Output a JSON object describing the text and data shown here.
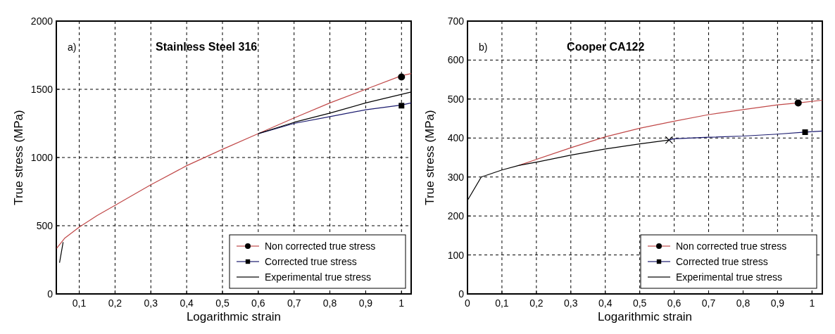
{
  "chart_data": [
    {
      "type": "line",
      "title": "Stainless Steel 316",
      "xlabel": "Logarithmic strain",
      "ylabel": "True stress (MPa)",
      "annotations": [
        "a)"
      ],
      "xlim": [
        0.036,
        1.027
      ],
      "ylim": [
        0,
        2000
      ],
      "xticks": [
        {
          "value": 0.1,
          "label": "0,1"
        },
        {
          "value": 0.2,
          "label": "0,2"
        },
        {
          "value": 0.3,
          "label": "0,3"
        },
        {
          "value": 0.4,
          "label": "0,4"
        },
        {
          "value": 0.5,
          "label": "0,5"
        },
        {
          "value": 0.6,
          "label": "0,6"
        },
        {
          "value": 0.7,
          "label": "0,7"
        },
        {
          "value": 0.8,
          "label": "0,8"
        },
        {
          "value": 0.9,
          "label": "0,9"
        },
        {
          "value": 1,
          "label": "1"
        }
      ],
      "yticks": [
        0,
        500,
        1000,
        1500,
        2000
      ],
      "grid": true,
      "legend": "bottom right",
      "series": [
        {
          "name": "Non corrected true stress",
          "color": "#c04848",
          "x": [
            0.037,
            0.06,
            0.1,
            0.15,
            0.2,
            0.3,
            0.4,
            0.5,
            0.6,
            0.7,
            0.8,
            0.9,
            1.0,
            1.027
          ],
          "values": [
            334,
            410,
            490,
            575,
            650,
            800,
            940,
            1060,
            1175,
            1290,
            1400,
            1500,
            1600,
            1615
          ]
        },
        {
          "type": "scatter",
          "color": "#000000",
          "marker": "circle",
          "x": [
            1.0
          ],
          "values": [
            1590
          ]
        },
        {
          "name": "Corrected true stress",
          "color": "#1a1a6e",
          "x": [
            0.6,
            0.7,
            0.8,
            0.9,
            1.0,
            1.027
          ],
          "values": [
            1175,
            1250,
            1300,
            1350,
            1385,
            1400
          ]
        },
        {
          "type": "scatter",
          "color": "#000000",
          "marker": "square",
          "x": [
            1.0
          ],
          "values": [
            1380
          ]
        },
        {
          "name": "Experimental true stress",
          "color": "#000000",
          "x": [
            0.045,
            0.055,
            0.06,
            0.6,
            0.7,
            0.8,
            0.9,
            1.027
          ],
          "values": [
            229,
            380,
            null,
            1175,
            1258,
            1325,
            1400,
            1480
          ]
        }
      ]
    },
    {
      "type": "line",
      "title": "Cooper CA122",
      "xlabel": "Logarithmic strain",
      "ylabel": "True stress (MPa)",
      "annotations": [
        "b)"
      ],
      "xlim": [
        0,
        1.03
      ],
      "ylim": [
        0,
        700
      ],
      "xticks": [
        0,
        {
          "value": 0.1,
          "label": "0,1"
        },
        {
          "value": 0.2,
          "label": "0,2"
        },
        {
          "value": 0.3,
          "label": "0,3"
        },
        {
          "value": 0.4,
          "label": "0,4"
        },
        {
          "value": 0.5,
          "label": "0,5"
        },
        {
          "value": 0.6,
          "label": "0,6"
        },
        {
          "value": 0.7,
          "label": "0,7"
        },
        {
          "value": 0.8,
          "label": "0,8"
        },
        {
          "value": 0.9,
          "label": "0,9"
        },
        {
          "value": 1,
          "label": "1"
        }
      ],
      "yticks": [
        0,
        100,
        200,
        300,
        400,
        500,
        600,
        700
      ],
      "grid": true,
      "legend": "bottom right",
      "series": [
        {
          "type": "scatter",
          "color": "#000000",
          "marker": "cross",
          "x": [
            0.585
          ],
          "values": [
            395
          ]
        },
        {
          "name": "Non corrected true stress",
          "color": "#c04848",
          "x": [
            0.15,
            0.2,
            0.3,
            0.4,
            0.5,
            0.6,
            0.7,
            0.8,
            0.9,
            0.96,
            1.03
          ],
          "values": [
            330,
            345,
            375,
            403,
            425,
            443,
            460,
            473,
            485,
            490,
            497
          ]
        },
        {
          "type": "scatter",
          "color": "#000000",
          "marker": "circle",
          "x": [
            0.96
          ],
          "values": [
            490
          ]
        },
        {
          "name": "Corrected true stress",
          "color": "#1a1a6e",
          "x": [
            0.585,
            0.6,
            0.7,
            0.8,
            0.9,
            0.98,
            1.03
          ],
          "values": [
            395,
            398,
            402,
            405,
            410,
            415,
            418
          ]
        },
        {
          "type": "scatter",
          "color": "#000000",
          "marker": "square",
          "x": [
            0.98
          ],
          "values": [
            415
          ]
        },
        {
          "name": "Experimental true stress",
          "color": "#000000",
          "x": [
            0,
            0.04,
            0.1,
            0.15,
            0.2,
            0.3,
            0.4,
            0.5,
            0.585
          ],
          "values": [
            240,
            300,
            318,
            330,
            338,
            356,
            372,
            385,
            395
          ]
        }
      ]
    }
  ]
}
